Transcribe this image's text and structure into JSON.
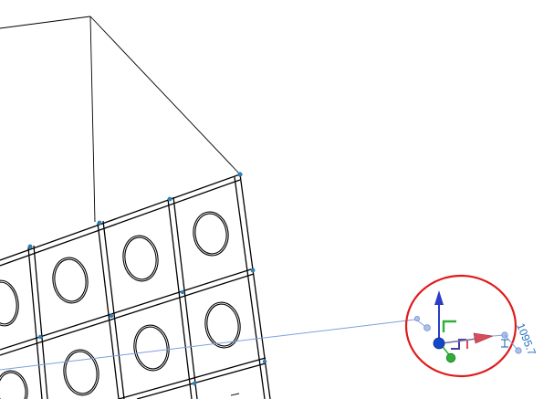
{
  "viewport": {
    "background_color": "#ffffff",
    "edge_color": "#000000",
    "vertex_color": "#2e7fb5",
    "reference_line_color": "#7f9fe0"
  },
  "gizmo": {
    "highlight_circle_color": "#e01b1b",
    "z_axis_color": "#2a3cc8",
    "x_axis_color": "#d94c5a",
    "y_axis_color": "#2fae3a",
    "origin_color": "#1248c8",
    "plane_xy_color": "#2fae3a",
    "plane_xz_color": "#4a3a9a",
    "plane_yz_color": "#d94c5a",
    "dimension_value": "1095.7"
  }
}
